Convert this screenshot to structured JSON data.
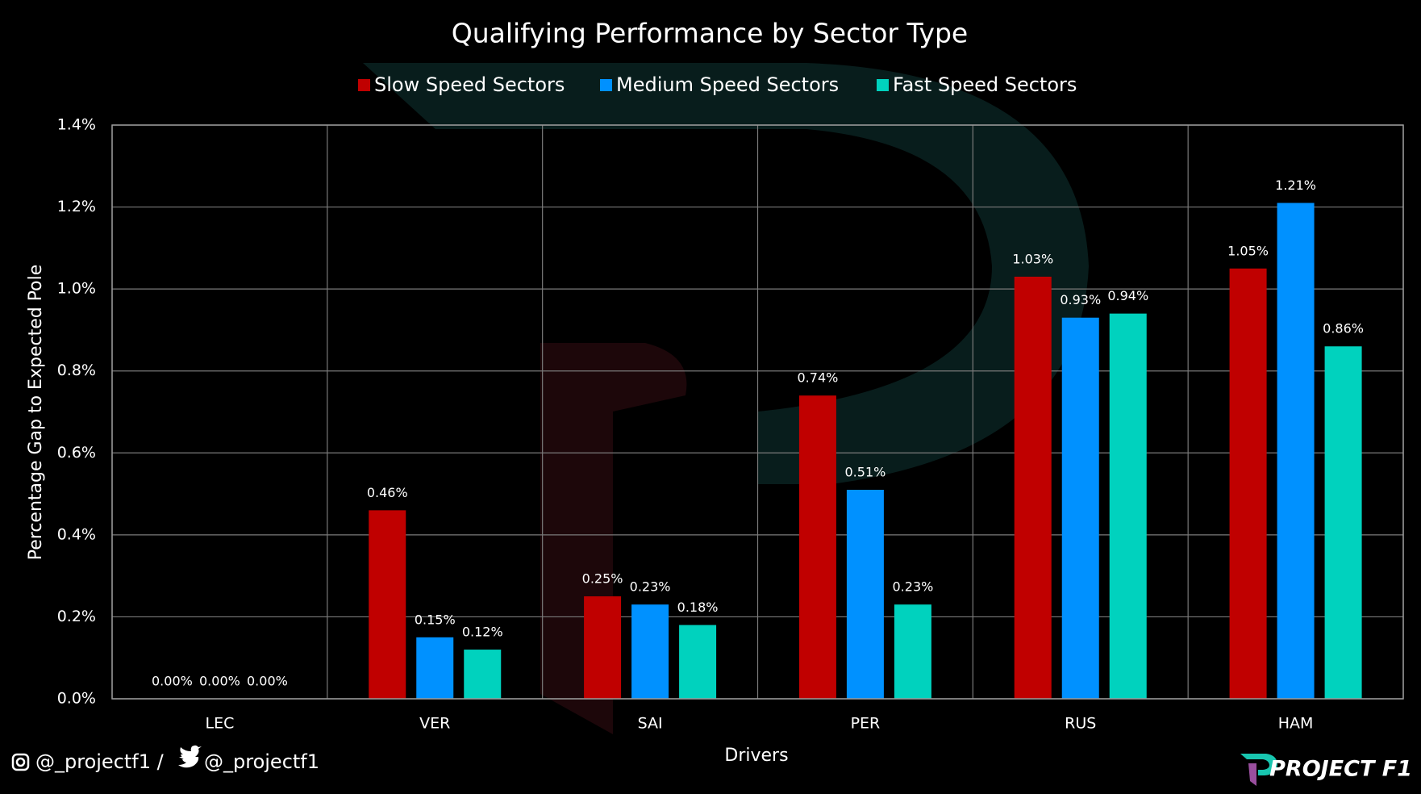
{
  "chart_data": {
    "type": "bar",
    "title": "Qualifying Performance by Sector Type",
    "x_label": "Drivers",
    "y_label": "Percentage Gap to Expected Pole",
    "categories": [
      "LEC",
      "VER",
      "SAI",
      "PER",
      "RUS",
      "HAM"
    ],
    "series": [
      {
        "name": "Slow Speed Sectors",
        "color": "#c00000",
        "values": [
          0.0,
          0.46,
          0.25,
          0.74,
          1.03,
          1.05
        ],
        "value_labels": [
          "0.00%",
          "0.46%",
          "0.25%",
          "0.74%",
          "1.03%",
          "1.05%"
        ]
      },
      {
        "name": "Medium Speed Sectors",
        "color": "#0091ff",
        "values": [
          0.0,
          0.15,
          0.23,
          0.51,
          0.93,
          1.21
        ],
        "value_labels": [
          "0.00%",
          "0.15%",
          "0.23%",
          "0.51%",
          "0.93%",
          "1.21%"
        ]
      },
      {
        "name": "Fast Speed Sectors",
        "color": "#00d2be",
        "values": [
          0.0,
          0.12,
          0.18,
          0.23,
          0.94,
          0.86
        ],
        "value_labels": [
          "0.00%",
          "0.12%",
          "0.18%",
          "0.23%",
          "0.94%",
          "0.86%"
        ]
      }
    ],
    "ylim": [
      0,
      1.4
    ],
    "yticks": [
      {
        "value": 0,
        "label": "0.0%"
      },
      {
        "value": 0.2,
        "label": "0.2%"
      },
      {
        "value": 0.4,
        "label": "0.4%"
      },
      {
        "value": 0.6,
        "label": "0.6%"
      },
      {
        "value": 0.8,
        "label": "0.8%"
      },
      {
        "value": 1.0,
        "label": "1.0%"
      },
      {
        "value": 1.2,
        "label": "1.2%"
      },
      {
        "value": 1.4,
        "label": "1.4%"
      }
    ],
    "grid": true,
    "legend": "top"
  },
  "footer": {
    "instagram": "@_projectf1 /",
    "twitter": "@_projectf1",
    "brand": "PROJECT F1"
  }
}
